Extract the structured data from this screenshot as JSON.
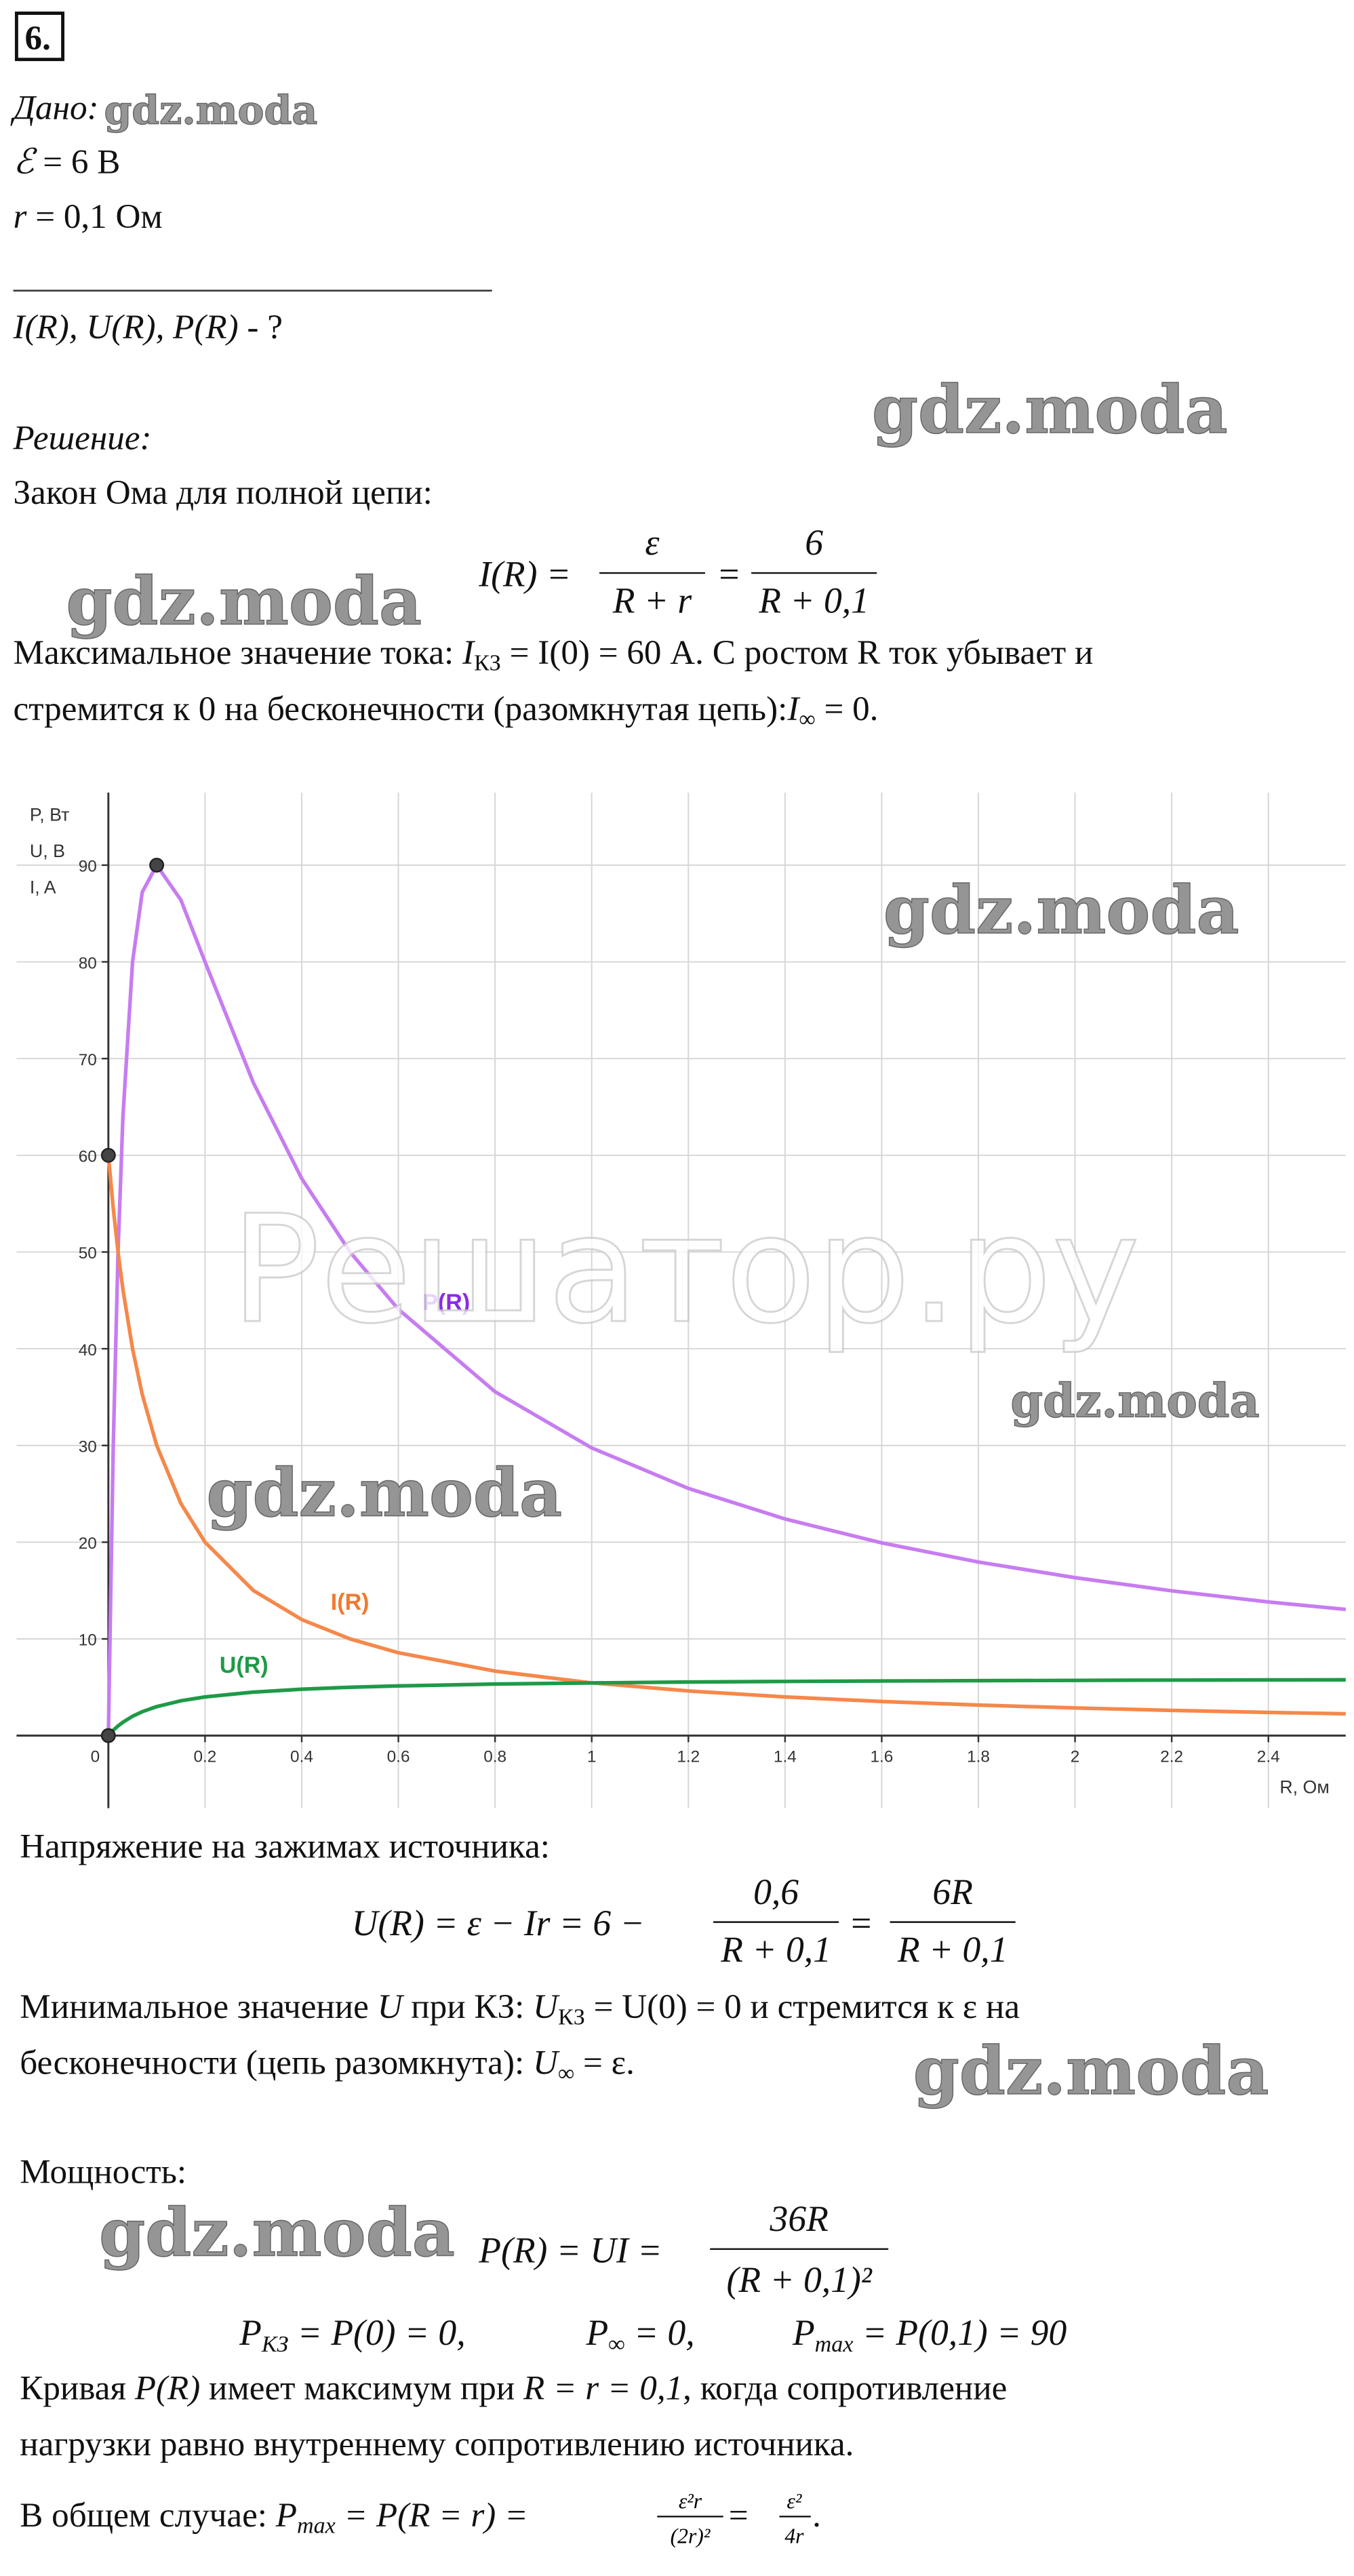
{
  "task_number": "6.",
  "given": {
    "label": "Дано:",
    "emf": [
      "ℰ",
      " = 6 В"
    ],
    "r": [
      "r",
      " = 0,1 Ом"
    ],
    "find": [
      "I(R), U(R), P(R)",
      " - ?"
    ]
  },
  "solution_label": "Решение:",
  "ohm_law": {
    "text": "Закон Ома для полной цепи:",
    "formula": {
      "lhs": "I(R) =",
      "num1": "ε",
      "den1": "R + r",
      "eq": "=",
      "num2": "6",
      "den2": "R + 0,1"
    }
  },
  "current_text": [
    [
      "Максимальное значение тока: ",
      "I",
      "КЗ",
      " = I(0) = 60 А. С ростом R ток убывает и"
    ],
    [
      "стремится к 0 на бесконечности (разомкнутая цепь):",
      "I",
      "∞",
      " = 0."
    ]
  ],
  "chart_data": {
    "type": "line",
    "x_label": "R, Ом",
    "y_labels": [
      "P, Вт",
      "U, В",
      "I, A"
    ],
    "x": [
      0,
      0.01,
      0.02,
      0.03,
      0.05,
      0.07,
      0.1,
      0.15,
      0.2,
      0.3,
      0.4,
      0.5,
      0.6,
      0.8,
      1.0,
      1.2,
      1.4,
      1.6,
      1.8,
      2.0,
      2.2,
      2.4,
      2.56
    ],
    "series": [
      {
        "name": "P(R)",
        "color": "#c77cf0",
        "label_color": "#8a2be2",
        "values": [
          0,
          29.75,
          50,
          63.9,
          80,
          87.2,
          90,
          86.4,
          80,
          67.5,
          57.6,
          50,
          44.08,
          35.56,
          29.75,
          25.56,
          22.4,
          19.93,
          17.95,
          16.33,
          14.97,
          13.82,
          13.05
        ]
      },
      {
        "name": "I(R)",
        "color": "#f5884a",
        "label_color": "#f07a30",
        "values": [
          60,
          54.55,
          50,
          46.15,
          40,
          35.29,
          30,
          24,
          20,
          15,
          12,
          10,
          8.57,
          6.67,
          5.45,
          4.62,
          4,
          3.53,
          3.16,
          2.86,
          2.61,
          2.4,
          2.26
        ]
      },
      {
        "name": "U(R)",
        "color": "#1e9a47",
        "label_color": "#1e9a47",
        "values": [
          0,
          0.55,
          1,
          1.38,
          2,
          2.47,
          3,
          3.6,
          4,
          4.5,
          4.8,
          5,
          5.14,
          5.33,
          5.45,
          5.54,
          5.6,
          5.65,
          5.68,
          5.71,
          5.74,
          5.76,
          5.77
        ]
      }
    ],
    "points": {
      "x": [
        0.1,
        0,
        0
      ],
      "y": [
        90,
        60,
        0
      ]
    },
    "xlim": [
      -0.19,
      2.56
    ],
    "ylim": [
      -7.5,
      97.5
    ],
    "xticks": [
      0,
      0.2,
      0.4,
      0.6,
      0.8,
      1,
      1.2,
      1.4,
      1.6,
      1.8,
      2,
      2.2,
      2.4
    ],
    "yticks": [
      10,
      20,
      30,
      40,
      50,
      60,
      70,
      80,
      90
    ],
    "grid": true
  },
  "voltage": {
    "text": "Напряжение на зажимах источника:",
    "formula": {
      "lhs": "U(R) = ε − Ir = 6 −",
      "num1": "0,6",
      "den1": "R + 0,1",
      "eq": "=",
      "num2": "6R",
      "den2": "R + 0,1"
    },
    "lines": [
      [
        "Минимальное значение ",
        "U",
        " при КЗ: ",
        "U",
        "КЗ",
        " = U(0) = 0 и стремится к ε на"
      ],
      [
        "бесконечности (цепь разомкнута): ",
        "U",
        "∞",
        " = ε."
      ]
    ]
  },
  "power": {
    "text": "Мощность:",
    "formula": {
      "lhs": "P(R) = UI =",
      "num": "36R",
      "den": "(R + 0,1)²"
    },
    "special": [
      [
        "P",
        "КЗ",
        " = P(0) = 0,"
      ],
      [
        "P",
        "∞",
        " = 0,"
      ],
      [
        "P",
        "max",
        " = P(0,1) = 90"
      ]
    ],
    "lines": [
      [
        "Кривая ",
        "P(R)",
        " имеет максимум при ",
        "R = r = 0,1",
        ", когда сопротивление"
      ],
      [
        "нагрузки равно внутреннему сопротивлению источника."
      ]
    ],
    "general": [
      "В общем случае: ",
      "P",
      "max",
      " = P(R = r) = ",
      "ε²r",
      "(2r)²",
      " = ",
      "ε²",
      "4r",
      "."
    ]
  },
  "watermarks": [
    "gdz.moda",
    "Решатор.ру"
  ]
}
